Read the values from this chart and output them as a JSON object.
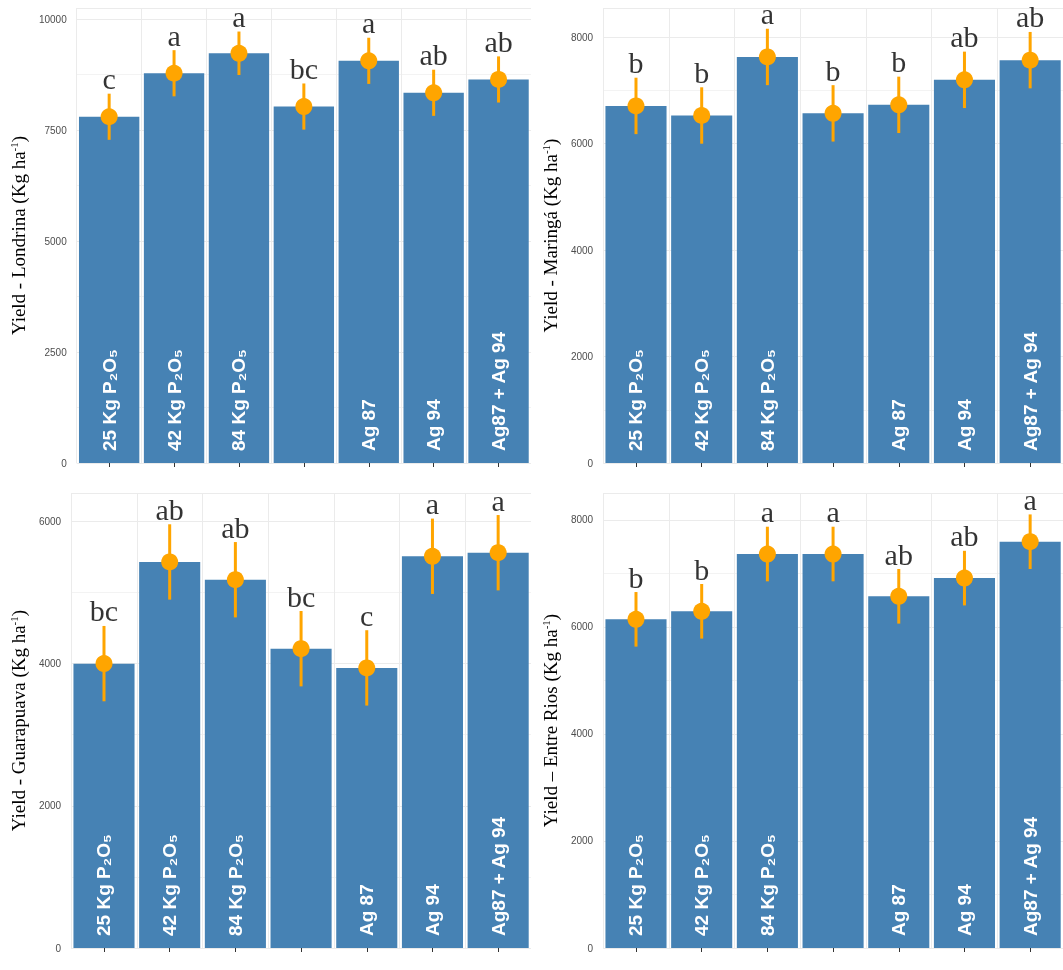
{
  "chart_data": [
    {
      "type": "bar",
      "ylabel": "Yield - Londrina (Kg ha$^{-1}$)",
      "categories": [
        "25 Kg P₂O₅",
        "42 Kg P₂O₅",
        "84 Kg P₂O₅",
        null,
        "Ag 87",
        "Ag 94",
        "Ag87 + Ag 94"
      ],
      "ylim": [
        0,
        10250
      ],
      "yticks": [
        0,
        2500,
        5000,
        7500,
        10000
      ],
      "grid": true,
      "series": [
        {
          "color": "#4682b4",
          "values": [
            7800,
            8780,
            9230,
            8030,
            9060,
            8340,
            8640
          ]
        },
        {
          "type": "scatter",
          "color": "#ffa500",
          "values": [
            7800,
            8780,
            9230,
            8030,
            9060,
            8340,
            8640
          ],
          "errors": [
            520,
            520,
            490,
            520,
            520,
            520,
            520
          ]
        }
      ],
      "annotations": [
        "c",
        "a",
        "a",
        "bc",
        "a",
        "ab",
        "ab"
      ]
    },
    {
      "type": "bar",
      "ylabel": "Yield - Maringá (Kg ha$^{-1}$)",
      "categories": [
        "25 Kg P₂O₅",
        "42 Kg P₂O₅",
        "84 Kg P₂O₅",
        null,
        "Ag 87",
        "Ag 94",
        "Ag87 + Ag 94"
      ],
      "ylim": [
        0,
        8550
      ],
      "yticks": [
        0,
        2000,
        4000,
        6000,
        8000
      ],
      "grid": true,
      "series": [
        {
          "color": "#4682b4",
          "values": [
            6710,
            6530,
            7630,
            6570,
            6730,
            7200,
            7570
          ]
        },
        {
          "type": "scatter",
          "color": "#ffa500",
          "values": [
            6710,
            6530,
            7630,
            6570,
            6730,
            7200,
            7570
          ],
          "errors": [
            530,
            530,
            530,
            530,
            530,
            530,
            530
          ]
        }
      ],
      "annotations": [
        "b",
        "b",
        "a",
        "b",
        "b",
        "ab",
        "ab"
      ]
    },
    {
      "type": "bar",
      "ylabel": "Yield - Guarapuava (Kg ha$^{-1}$)",
      "categories": [
        "25 Kg P₂O₅",
        "42 Kg P₂O₅",
        "84 Kg P₂O₅",
        null,
        "Ag 87",
        "Ag 94",
        "Ag87 + Ag 94"
      ],
      "ylim": [
        0,
        6400
      ],
      "yticks": [
        0,
        2000,
        4000,
        6000
      ],
      "grid": true,
      "series": [
        {
          "color": "#4682b4",
          "values": [
            4000,
            5430,
            5180,
            4210,
            3940,
            5510,
            5560
          ]
        },
        {
          "type": "scatter",
          "color": "#ffa500",
          "values": [
            4000,
            5430,
            5180,
            4210,
            3940,
            5510,
            5560
          ],
          "errors": [
            530,
            530,
            530,
            530,
            530,
            530,
            530
          ]
        }
      ],
      "annotations": [
        "bc",
        "ab",
        "ab",
        "bc",
        "c",
        "a",
        "a"
      ]
    },
    {
      "type": "bar",
      "ylabel": "Yield – Entre Rios (Kg ha$^{-1}$)",
      "categories": [
        "25 Kg P₂O₅",
        "42 Kg P₂O₅",
        "84 Kg P₂O₅",
        null,
        "Ag 87",
        "Ag 94",
        "Ag87 + Ag 94"
      ],
      "ylim": [
        0,
        8500
      ],
      "yticks": [
        0,
        2000,
        4000,
        6000,
        8000
      ],
      "grid": true,
      "series": [
        {
          "color": "#4682b4",
          "values": [
            6140,
            6290,
            7360,
            7360,
            6570,
            6910,
            7590
          ]
        },
        {
          "type": "scatter",
          "color": "#ffa500",
          "values": [
            6140,
            6290,
            7360,
            7360,
            6570,
            6910,
            7590
          ],
          "errors": [
            510,
            510,
            510,
            510,
            510,
            510,
            510
          ]
        }
      ],
      "annotations": [
        "b",
        "b",
        "a",
        "a",
        "ab",
        "ab",
        "a"
      ]
    }
  ]
}
